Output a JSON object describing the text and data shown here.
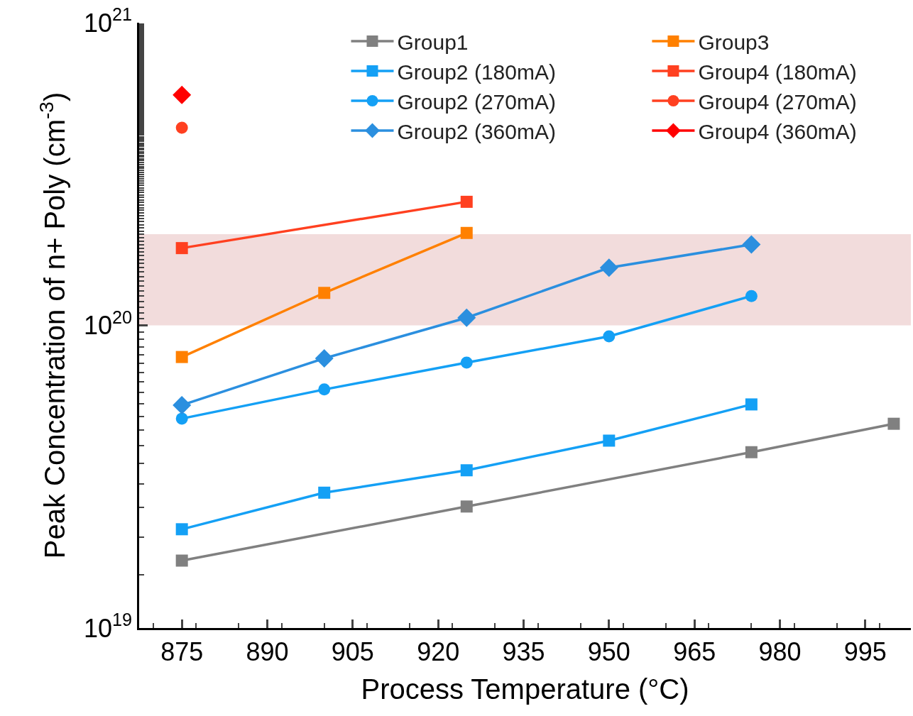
{
  "chart_data": {
    "type": "line",
    "xlabel": "Process Temperature (°C)",
    "ylabel": "Peak Concentration of n+ Poly (cm$^{-3}$)",
    "log": "y",
    "xlim": [
      867.5,
      1003
    ],
    "xticks": [
      875,
      890,
      905,
      920,
      935,
      950,
      965,
      980,
      995
    ],
    "ylim": [
      1e+19,
      1e+21
    ],
    "yticks": [
      {
        "value": 1e+19,
        "label": "10$^{19}$"
      },
      {
        "value": 1e+20,
        "label": "10$^{20}$"
      },
      {
        "value": 1e+21,
        "label": "10$^{21}$"
      }
    ],
    "grid": false,
    "legend": "top",
    "line_style": "solid",
    "bands": [
      {
        "axis": "y",
        "from": 1e+20,
        "to": 2e+20,
        "color": "#f2dcdc"
      }
    ],
    "series": [
      {
        "name": "Group1",
        "color": "#808080",
        "marker": "square",
        "x": [
          875,
          925,
          975,
          1000
        ],
        "values": [
          1.67e+19,
          2.52e+19,
          3.81e+19,
          4.73e+19
        ]
      },
      {
        "name": "Group2 (180mA)",
        "color": "#14a0f5",
        "marker": "square",
        "x": [
          875,
          900,
          925,
          950,
          975
        ],
        "values": [
          2.12e+19,
          2.8e+19,
          3.32e+19,
          4.16e+19,
          5.48e+19
        ]
      },
      {
        "name": "Group2 (270mA)",
        "color": "#14a0f5",
        "marker": "circle",
        "x": [
          875,
          900,
          925,
          950,
          975
        ],
        "values": [
          4.92e+19,
          6.14e+19,
          7.53e+19,
          9.2e+19,
          1.25e+20
        ]
      },
      {
        "name": "Group2 (360mA)",
        "color": "#2b8fdf",
        "marker": "diamond",
        "x": [
          875,
          900,
          925,
          950,
          975
        ],
        "values": [
          5.45e+19,
          7.78e+19,
          1.06e+20,
          1.55e+20,
          1.85e+20
        ]
      },
      {
        "name": "Group3",
        "color": "#ff8000",
        "marker": "square",
        "x": [
          875,
          900,
          925
        ],
        "values": [
          7.86e+19,
          1.28e+20,
          2.02e+20
        ]
      },
      {
        "name": "Group4 (180mA)",
        "color": "#ff4020",
        "marker": "square",
        "x": [
          875,
          925
        ],
        "values": [
          1.8e+20,
          2.56e+20
        ]
      },
      {
        "name": "Group4 (270mA)",
        "color": "#ff4020",
        "marker": "circle",
        "x": [
          875
        ],
        "values": [
          4.5e+20
        ]
      },
      {
        "name": "Group4 (360mA)",
        "color": "#ff0000",
        "marker": "diamond",
        "x": [
          875
        ],
        "values": [
          5.77e+20
        ]
      }
    ]
  }
}
